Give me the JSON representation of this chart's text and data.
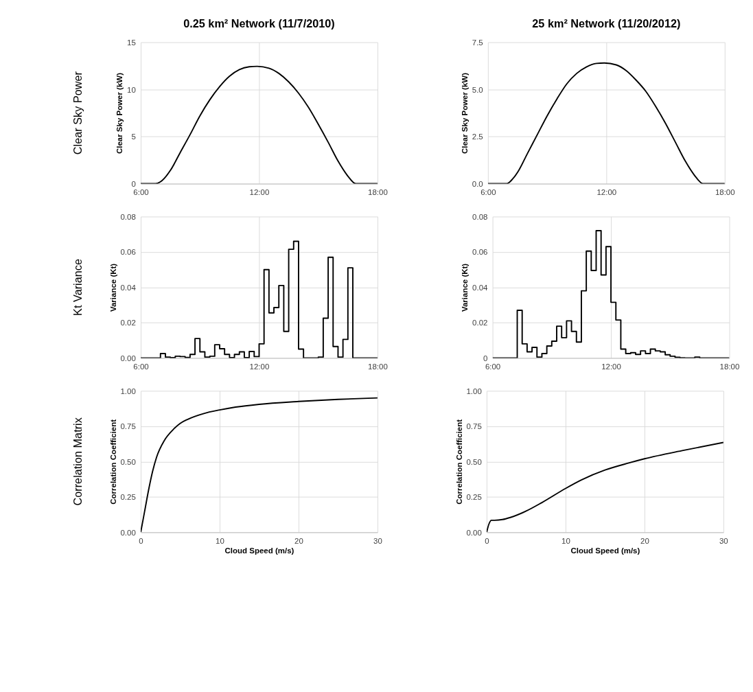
{
  "chart_data": [
    {
      "type": "line",
      "title": "0.25 km² Network (11/7/2010)",
      "ylabel": "Clear Sky  Power (kW)",
      "annotations": [
        "Clear Sky Power"
      ],
      "grid": true,
      "xlim": [
        6,
        18
      ],
      "xticks": [
        {
          "value": 6,
          "label": "6:00"
        },
        {
          "value": 12,
          "label": "12:00"
        },
        {
          "value": 18,
          "label": "18:00"
        }
      ],
      "ylim": [
        0,
        15
      ],
      "yticks": [
        0,
        5,
        10,
        15
      ],
      "series": [
        {
          "color": "#000000",
          "x": [
            6,
            6.75,
            7.0,
            7.5,
            8.0,
            8.5,
            9.0,
            9.5,
            10.0,
            10.5,
            11.0,
            11.5,
            11.9,
            12.5,
            13.0,
            13.5,
            14.0,
            14.5,
            15.0,
            15.5,
            16.0,
            16.5,
            16.9,
            18
          ],
          "values": [
            0,
            0,
            0.2,
            1.4,
            3.3,
            5.2,
            7.2,
            8.9,
            10.3,
            11.4,
            12.1,
            12.4,
            12.45,
            12.25,
            11.7,
            10.8,
            9.6,
            8.1,
            6.3,
            4.4,
            2.4,
            0.8,
            0,
            0
          ]
        }
      ]
    },
    {
      "type": "line",
      "title": "25 km² Network (11/20/2012)",
      "ylabel": "Clear Sky Power (kW)",
      "grid": true,
      "xlim": [
        6,
        18
      ],
      "xticks": [
        {
          "value": 6,
          "label": "6:00"
        },
        {
          "value": 12,
          "label": "12:00"
        },
        {
          "value": 18,
          "label": "18:00"
        }
      ],
      "ylim": [
        0,
        7.5
      ],
      "yticks": [
        {
          "value": 0,
          "label": "0.0"
        },
        2.5,
        {
          "value": 5,
          "label": "5.0"
        },
        7.5
      ],
      "series": [
        {
          "color": "#000000",
          "x": [
            6,
            6.95,
            7.25,
            7.5,
            8.0,
            8.5,
            9.0,
            9.5,
            10.0,
            10.5,
            11.0,
            11.5,
            11.9,
            12.5,
            13.0,
            13.5,
            14.0,
            14.5,
            15.0,
            15.5,
            16.0,
            16.5,
            16.9,
            18
          ],
          "values": [
            0,
            0,
            0.25,
            0.6,
            1.6,
            2.6,
            3.6,
            4.5,
            5.3,
            5.85,
            6.2,
            6.38,
            6.4,
            6.3,
            6.0,
            5.5,
            4.9,
            4.1,
            3.2,
            2.2,
            1.2,
            0.4,
            0,
            0
          ]
        }
      ]
    },
    {
      "type": "step",
      "ylabel": "Variance (Kt)",
      "annotations": [
        "Kt Variance"
      ],
      "grid": true,
      "xlim": [
        6,
        18
      ],
      "xticks": [
        {
          "value": 6,
          "label": "6:00"
        },
        {
          "value": 12,
          "label": "12:00"
        },
        {
          "value": 18,
          "label": "18:00"
        }
      ],
      "ylim": [
        0,
        0.08
      ],
      "yticks": [
        {
          "value": 0,
          "label": "0.00"
        },
        0.02,
        0.04,
        0.06,
        0.08
      ],
      "series": [
        {
          "color": "#000000",
          "x": [
            6,
            6.25,
            6.5,
            6.75,
            7,
            7.25,
            7.5,
            7.75,
            8,
            8.25,
            8.5,
            8.75,
            9,
            9.25,
            9.5,
            9.75,
            10,
            10.25,
            10.5,
            10.75,
            11,
            11.25,
            11.5,
            11.75,
            12,
            12.25,
            12.5,
            12.75,
            13,
            13.25,
            13.5,
            13.75,
            14,
            14.25,
            14.5,
            14.75,
            15,
            15.25,
            15.5,
            15.75,
            16,
            16.25,
            16.5,
            16.75,
            17,
            17.25,
            17.5,
            17.75,
            18
          ],
          "values": [
            0,
            0,
            0,
            0,
            0.0025,
            0.0005,
            0.0002,
            0.001,
            0.0008,
            0.0003,
            0.002,
            0.011,
            0.0035,
            0.0005,
            0.001,
            0.0075,
            0.0052,
            0.002,
            0.0002,
            0.002,
            0.0035,
            0.0002,
            0.0037,
            0.0008,
            0.008,
            0.05,
            0.0255,
            0.0285,
            0.041,
            0.015,
            0.0615,
            0.066,
            0.005,
            0,
            0,
            0,
            0.0005,
            0.0225,
            0.057,
            0.0065,
            0.0005,
            0.0105,
            0.051,
            0,
            0,
            0,
            0,
            0,
            0
          ]
        }
      ]
    },
    {
      "type": "step",
      "ylabel": "Variance (Kt)",
      "grid": true,
      "xlim": [
        6,
        18
      ],
      "xticks": [
        {
          "value": 6,
          "label": "6:00"
        },
        {
          "value": 12,
          "label": "12:00"
        },
        {
          "value": 18,
          "label": "18:00"
        }
      ],
      "ylim": [
        0,
        0.08
      ],
      "yticks": [
        0,
        0.02,
        0.04,
        0.06,
        0.08
      ],
      "series": [
        {
          "color": "#000000",
          "x": [
            6,
            6.25,
            6.5,
            6.75,
            7,
            7.25,
            7.5,
            7.75,
            8,
            8.25,
            8.5,
            8.75,
            9,
            9.25,
            9.5,
            9.75,
            10,
            10.25,
            10.5,
            10.75,
            11,
            11.25,
            11.5,
            11.75,
            12,
            12.25,
            12.5,
            12.75,
            13,
            13.25,
            13.5,
            13.75,
            14,
            14.25,
            14.5,
            14.75,
            15,
            15.25,
            15.5,
            15.75,
            16,
            16.25,
            16.5,
            16.75,
            17,
            17.25,
            17.5,
            17.75,
            18
          ],
          "values": [
            0,
            0,
            0,
            0,
            0,
            0.027,
            0.008,
            0.0035,
            0.006,
            0.0005,
            0.0025,
            0.0068,
            0.0095,
            0.018,
            0.0115,
            0.021,
            0.015,
            0.009,
            0.038,
            0.0605,
            0.0495,
            0.072,
            0.047,
            0.063,
            0.0315,
            0.0215,
            0.005,
            0.0025,
            0.003,
            0.002,
            0.004,
            0.0025,
            0.005,
            0.004,
            0.0035,
            0.0018,
            0.001,
            0.0004,
            0.0001,
            0,
            0,
            0.0005,
            0,
            0,
            0,
            0,
            0,
            0,
            0
          ]
        }
      ]
    },
    {
      "type": "line",
      "xlabel": "Cloud Speed (m/s)",
      "ylabel": "Correlation Coefficient",
      "annotations": [
        "Correlation Matrix"
      ],
      "grid": true,
      "xlim": [
        0,
        30
      ],
      "xticks": [
        0,
        10,
        20,
        30
      ],
      "ylim": [
        0,
        1
      ],
      "yticks": [
        {
          "value": 0,
          "label": "0.00"
        },
        0.25,
        {
          "value": 0.5,
          "label": "0.50"
        },
        0.75,
        {
          "value": 1,
          "label": "1.00"
        }
      ],
      "series": [
        {
          "color": "#000000",
          "x": [
            0,
            0.5,
            1,
            1.5,
            2,
            3,
            4,
            5,
            6,
            8,
            10,
            12,
            15,
            20,
            25,
            30
          ],
          "values": [
            0,
            0.15,
            0.3,
            0.43,
            0.53,
            0.65,
            0.72,
            0.77,
            0.8,
            0.84,
            0.865,
            0.885,
            0.905,
            0.925,
            0.94,
            0.95
          ]
        }
      ]
    },
    {
      "type": "line",
      "xlabel": "Cloud Speed (m/s)",
      "ylabel": "Correlation Coefficient",
      "grid": true,
      "xlim": [
        0,
        30
      ],
      "xticks": [
        0,
        10,
        20,
        30
      ],
      "ylim": [
        0,
        1
      ],
      "yticks": [
        {
          "value": 0,
          "label": "0.00"
        },
        0.25,
        {
          "value": 0.5,
          "label": "0.50"
        },
        0.75,
        {
          "value": 1,
          "label": "1.00"
        }
      ],
      "series": [
        {
          "color": "#000000",
          "x": [
            0,
            0.3,
            0.6,
            1,
            2,
            3,
            5,
            7,
            10,
            12,
            15,
            18,
            20,
            25,
            30
          ],
          "values": [
            0,
            0.06,
            0.085,
            0.085,
            0.09,
            0.105,
            0.15,
            0.21,
            0.31,
            0.37,
            0.44,
            0.49,
            0.52,
            0.58,
            0.635
          ]
        }
      ]
    }
  ]
}
